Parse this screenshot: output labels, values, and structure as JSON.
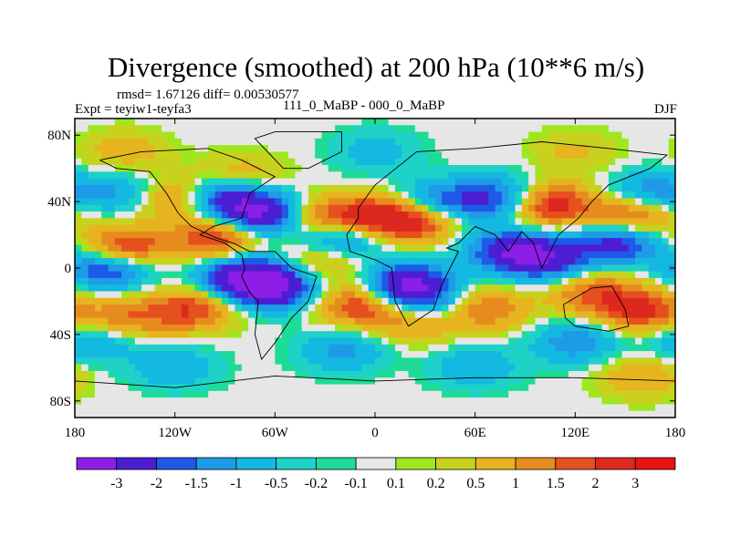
{
  "chart_data": {
    "type": "heatmap",
    "title": "Divergence (smoothed) at 200 hPa (10**6 m/s)",
    "stats_line": "rmsd= 1.67126 diff= 0.00530577",
    "experiment": "Expt = teyiw1-teyfa3",
    "comparison": "111_0_MaBP - 000_0_MaBP",
    "season": "DJF",
    "x_ticks": [
      {
        "value": -180,
        "label": "180"
      },
      {
        "value": -120,
        "label": "120W"
      },
      {
        "value": -60,
        "label": "60W"
      },
      {
        "value": 0,
        "label": "0"
      },
      {
        "value": 60,
        "label": "60E"
      },
      {
        "value": 120,
        "label": "120E"
      },
      {
        "value": 180,
        "label": "180"
      }
    ],
    "y_ticks": [
      {
        "value": 80,
        "label": "80N"
      },
      {
        "value": 40,
        "label": "40N"
      },
      {
        "value": 0,
        "label": "0"
      },
      {
        "value": -40,
        "label": "40S"
      },
      {
        "value": -80,
        "label": "80S"
      }
    ],
    "xlim": [
      -180,
      180
    ],
    "ylim": [
      -90,
      90
    ],
    "contour_levels": [
      {
        "value": -3,
        "label": "-3"
      },
      {
        "value": -2,
        "label": "-2"
      },
      {
        "value": -1.5,
        "label": "-1.5"
      },
      {
        "value": -1,
        "label": "-1"
      },
      {
        "value": -0.5,
        "label": "-0.5"
      },
      {
        "value": -0.2,
        "label": "-0.2"
      },
      {
        "value": -0.1,
        "label": "-0.1"
      },
      {
        "value": 0.1,
        "label": "0.1"
      },
      {
        "value": 0.2,
        "label": "0.2"
      },
      {
        "value": 0.5,
        "label": "0.5"
      },
      {
        "value": 1,
        "label": "1"
      },
      {
        "value": 1.5,
        "label": "1.5"
      },
      {
        "value": 2,
        "label": "2"
      },
      {
        "value": 3,
        "label": "3"
      }
    ],
    "colors": [
      "#8c1ee6",
      "#4b1ed2",
      "#1e5ae6",
      "#1e9be6",
      "#14b9e1",
      "#1ed2c8",
      "#1edc96",
      "#e6e6e6",
      "#a0e61e",
      "#c8d21e",
      "#e6b41e",
      "#e68c1e",
      "#e6501e",
      "#dc281e",
      "#e61414"
    ],
    "blobs": [
      {
        "lon": -150,
        "lat": 12,
        "v": 2.4
      },
      {
        "lon": -95,
        "lat": 18,
        "v": 2.2
      },
      {
        "lon": -120,
        "lat": 42,
        "v": 1.6
      },
      {
        "lon": -40,
        "lat": 30,
        "v": 1.8
      },
      {
        "lon": -5,
        "lat": 30,
        "v": 2.5
      },
      {
        "lon": 25,
        "lat": 28,
        "v": 2.2
      },
      {
        "lon": 105,
        "lat": 38,
        "v": 2.6
      },
      {
        "lon": 155,
        "lat": 32,
        "v": 2.0
      },
      {
        "lon": -110,
        "lat": -25,
        "v": 2.0
      },
      {
        "lon": -150,
        "lat": -30,
        "v": 1.4
      },
      {
        "lon": -10,
        "lat": -22,
        "v": 2.0
      },
      {
        "lon": 25,
        "lat": -30,
        "v": 2.4
      },
      {
        "lon": 65,
        "lat": -25,
        "v": 1.6
      },
      {
        "lon": 130,
        "lat": -15,
        "v": 1.6
      },
      {
        "lon": 160,
        "lat": -25,
        "v": 2.2
      },
      {
        "lon": -80,
        "lat": 55,
        "v": 1.0
      },
      {
        "lon": -30,
        "lat": 5,
        "v": 1.2
      },
      {
        "lon": 90,
        "lat": 5,
        "v": 1.2
      },
      {
        "lon": -65,
        "lat": 32,
        "v": -3.2
      },
      {
        "lon": -90,
        "lat": 42,
        "v": -2.4
      },
      {
        "lon": -80,
        "lat": -5,
        "v": -2.8
      },
      {
        "lon": -60,
        "lat": -12,
        "v": -3.0
      },
      {
        "lon": 20,
        "lat": -10,
        "v": -3.2
      },
      {
        "lon": 30,
        "lat": -25,
        "v": -2.4
      },
      {
        "lon": -160,
        "lat": 0,
        "v": -2.4
      },
      {
        "lon": 100,
        "lat": 5,
        "v": -3.2
      },
      {
        "lon": 80,
        "lat": 10,
        "v": -2.6
      },
      {
        "lon": 145,
        "lat": 15,
        "v": -2.4
      },
      {
        "lon": 75,
        "lat": 42,
        "v": -2.0
      },
      {
        "lon": -20,
        "lat": 18,
        "v": -2.2
      },
      {
        "lon": 40,
        "lat": 40,
        "v": -1.8
      },
      {
        "lon": 165,
        "lat": 45,
        "v": -1.6
      },
      {
        "lon": -150,
        "lat": 45,
        "v": -1.2
      },
      {
        "lon": 120,
        "lat": -45,
        "v": -1.4
      },
      {
        "lon": -20,
        "lat": -50,
        "v": -1.2
      },
      {
        "lon": -120,
        "lat": -60,
        "v": -1.0
      },
      {
        "lon": 60,
        "lat": -60,
        "v": -1.0
      },
      {
        "lon": 160,
        "lat": -65,
        "v": 1.0
      },
      {
        "lon": -170,
        "lat": -45,
        "v": -1.2
      },
      {
        "lon": 0,
        "lat": 70,
        "v": -0.8
      },
      {
        "lon": -150,
        "lat": 70,
        "v": 0.8
      },
      {
        "lon": 120,
        "lat": 70,
        "v": 0.6
      }
    ]
  }
}
